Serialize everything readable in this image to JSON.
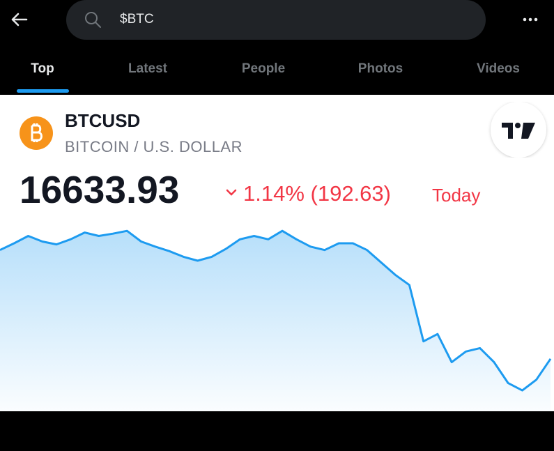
{
  "header": {
    "search_query": "$BTC"
  },
  "tabs": [
    "Top",
    "Latest",
    "People",
    "Photos",
    "Videos"
  ],
  "card": {
    "symbol": "BTCUSD",
    "name": "BITCOIN / U.S. DOLLAR",
    "price": "16633.93",
    "change": "1.14% (192.63)",
    "period": "Today"
  },
  "chart_data": {
    "type": "area",
    "color": "#1d9bf0",
    "ylim": [
      16540,
      16880
    ],
    "values": [
      16826,
      16838,
      16851,
      16841,
      16836,
      16845,
      16857,
      16851,
      16855,
      16860,
      16841,
      16832,
      16824,
      16814,
      16807,
      16814,
      16828,
      16845,
      16851,
      16845,
      16860,
      16845,
      16832,
      16826,
      16838,
      16838,
      16826,
      16804,
      16782,
      16764,
      16664,
      16677,
      16627,
      16646,
      16652,
      16627,
      16590,
      16577,
      16596,
      16633
    ]
  }
}
